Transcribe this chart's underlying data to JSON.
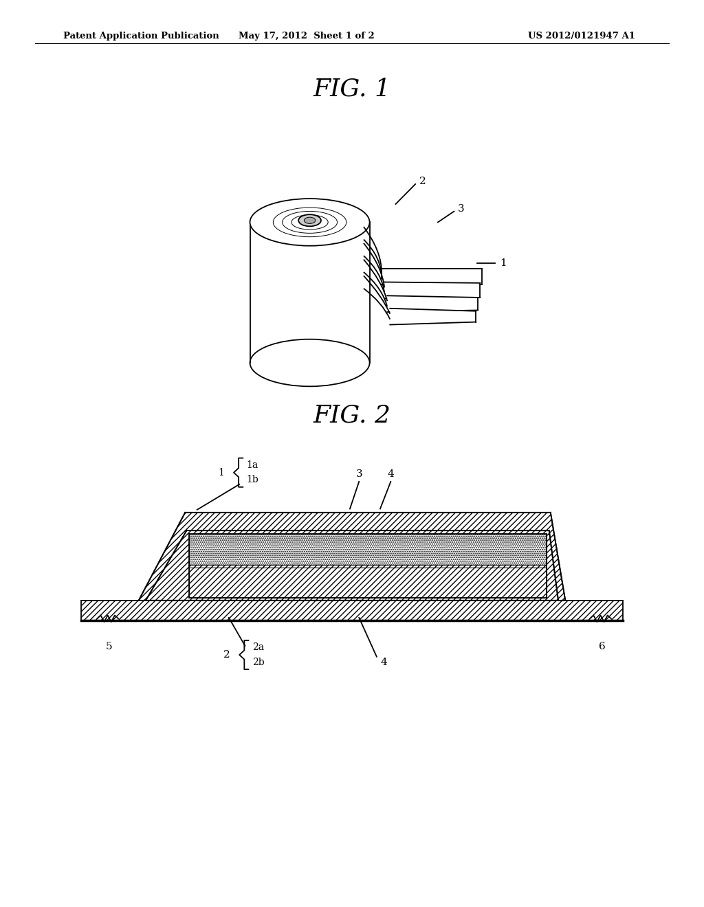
{
  "bg_color": "#ffffff",
  "header_left": "Patent Application Publication",
  "header_mid": "May 17, 2012  Sheet 1 of 2",
  "header_right": "US 2012/0121947 A1",
  "fig1_title": "FIG. 1",
  "fig2_title": "FIG. 2",
  "line_color": "#000000"
}
